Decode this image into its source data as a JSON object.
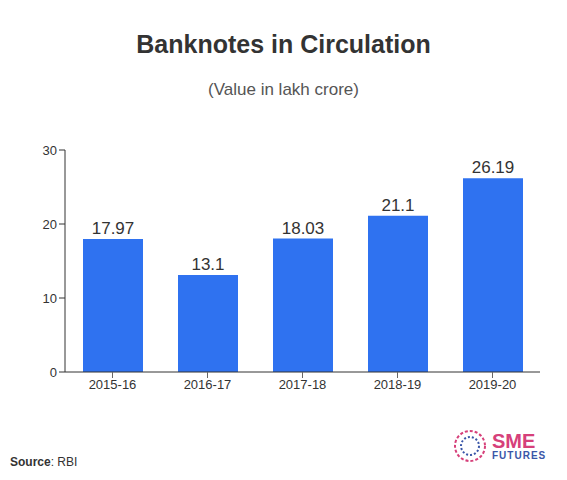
{
  "chart_data": {
    "type": "bar",
    "title": "Banknotes in Circulation",
    "subtitle": "(Value in lakh crore)",
    "categories": [
      "2015-16",
      "2016-17",
      "2017-18",
      "2018-19",
      "2019-20"
    ],
    "values": [
      17.97,
      13.1,
      18.03,
      21.1,
      26.19
    ],
    "color": "#2f72f0",
    "ylim": [
      0,
      30
    ],
    "yticks": [
      0,
      10,
      20,
      30
    ],
    "grid": false,
    "data_labels": true,
    "source": "Source: RBI",
    "logo": [
      "SME",
      "FUTURES"
    ]
  }
}
